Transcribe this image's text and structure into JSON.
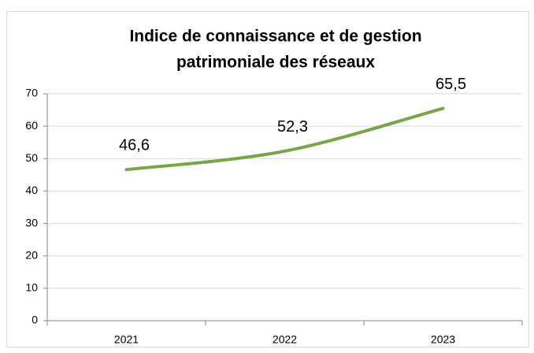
{
  "chart_data": {
    "type": "line",
    "title": [
      "Indice de connaissance et de gestion",
      "patrimoniale des réseaux"
    ],
    "categories": [
      "2021",
      "2022",
      "2023"
    ],
    "series": [
      {
        "name": null,
        "color": "#77a646",
        "values": [
          46.6,
          52.3,
          65.5
        ],
        "value_labels": [
          "46,6",
          "52,3",
          "65,5"
        ]
      }
    ],
    "ylim": [
      0,
      70
    ],
    "yticks": [
      0,
      10,
      20,
      30,
      40,
      50,
      60,
      70
    ],
    "grid": true,
    "smooth": true
  }
}
